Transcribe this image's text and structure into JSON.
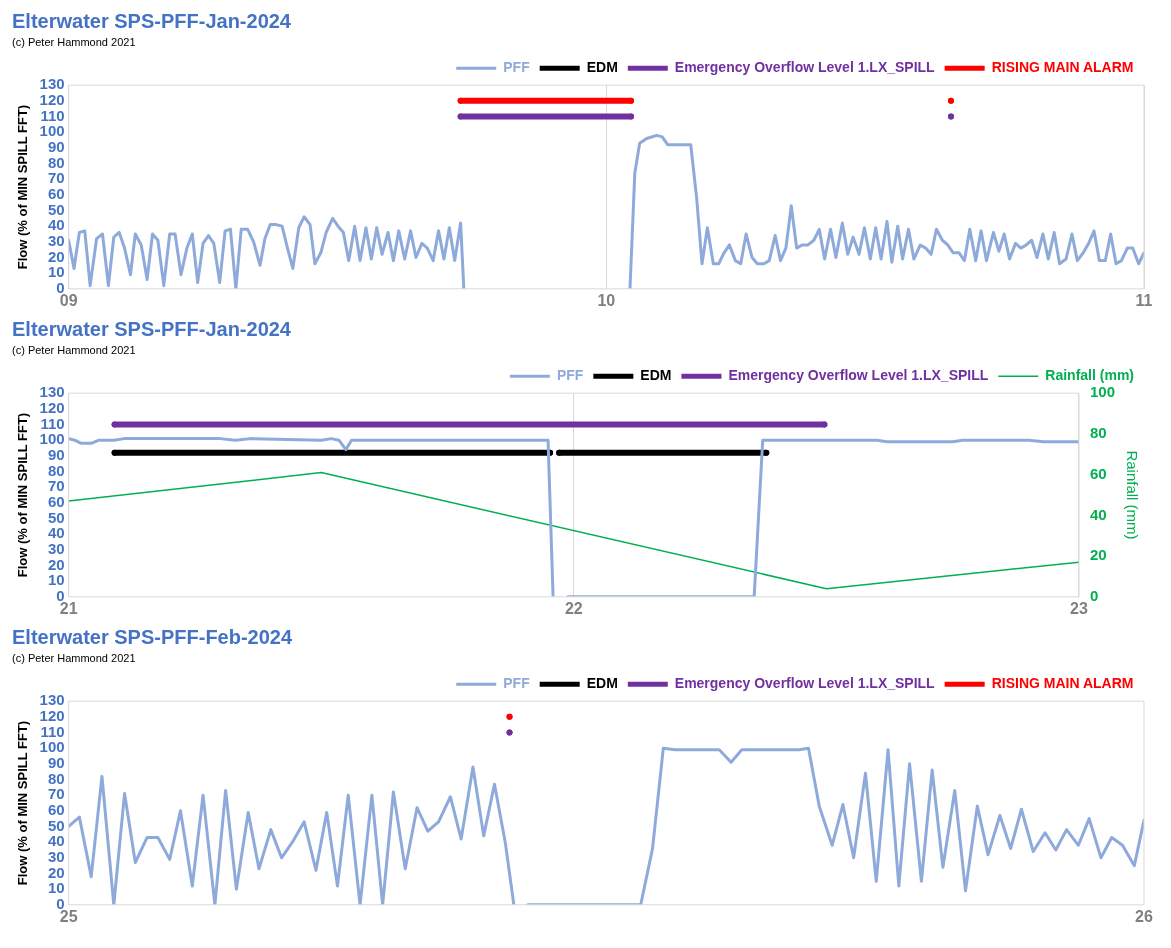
{
  "chart_data": [
    {
      "type": "line",
      "title": "Elterwater SPS-PFF-Jan-2024",
      "subtitle": "(c) Peter Hammond 2021",
      "ylabel": "Flow (% of MIN SPILL FFT)",
      "xlim": [
        9,
        11
      ],
      "xticks": [
        {
          "value": 9,
          "label": "09"
        },
        {
          "value": 10,
          "label": "10"
        },
        {
          "value": 11,
          "label": "11"
        }
      ],
      "ylim": [
        0,
        130
      ],
      "yticks": [
        0,
        10,
        20,
        30,
        40,
        50,
        60,
        70,
        80,
        90,
        100,
        110,
        120,
        130
      ],
      "grid": "x",
      "legend": "top",
      "series": [
        {
          "name": "PFF",
          "color": "#8eaadb",
          "marker": "none",
          "x": [
            9.0,
            9.01,
            9.02,
            9.03,
            9.04,
            9.052,
            9.063,
            9.074,
            9.084,
            9.094,
            9.104,
            9.115,
            9.124,
            9.135,
            9.146,
            9.156,
            9.166,
            9.177,
            9.188,
            9.198,
            9.209,
            9.22,
            9.23,
            9.24,
            9.25,
            9.26,
            9.27,
            9.281,
            9.291,
            9.301,
            9.311,
            9.321,
            9.333,
            9.344,
            9.356,
            9.365,
            9.375,
            9.386,
            9.397,
            9.407,
            9.417,
            9.428,
            9.438,
            9.449,
            9.458,
            9.469,
            9.479,
            9.491,
            9.501,
            9.511,
            9.521,
            9.532,
            9.542,
            9.553,
            9.563,
            9.573,
            9.583,
            9.594,
            9.604,
            9.614,
            9.625,
            9.636,
            9.646,
            9.657,
            9.667,
            9.678,
            9.688,
            9.698,
            9.708,
            9.718,
            9.729,
            9.735,
            9.9,
            10.044,
            10.053,
            10.062,
            10.075,
            10.094,
            10.104,
            10.114,
            10.157,
            10.168,
            10.178,
            10.188,
            10.199,
            10.209,
            10.219,
            10.229,
            10.24,
            10.25,
            10.26,
            10.271,
            10.281,
            10.293,
            10.303,
            10.314,
            10.324,
            10.334,
            10.344,
            10.354,
            10.364,
            10.375,
            10.386,
            10.396,
            10.406,
            10.417,
            10.427,
            10.439,
            10.449,
            10.459,
            10.47,
            10.48,
            10.491,
            10.501,
            10.511,
            10.522,
            10.531,
            10.542,
            10.551,
            10.562,
            10.572,
            10.584,
            10.594,
            10.604,
            10.614,
            10.625,
            10.635,
            10.645,
            10.656,
            10.666,
            10.676,
            10.687,
            10.697,
            10.707,
            10.72,
            10.73,
            10.74,
            10.75,
            10.761,
            10.771,
            10.781,
            10.791,
            10.801,
            10.812,
            10.822,
            10.833,
            10.843,
            10.855,
            10.866,
            10.876,
            10.887,
            10.897,
            10.907,
            10.917,
            10.928,
            10.938,
            10.948,
            10.958,
            10.969,
            10.979,
            10.99,
            11.0
          ],
          "values": [
            31,
            13,
            36,
            37,
            2,
            32,
            35,
            2,
            33,
            36,
            26,
            9,
            35,
            28,
            6,
            35,
            31,
            2,
            35,
            35,
            9,
            26,
            35,
            4,
            29,
            34,
            29,
            4,
            37,
            38,
            0,
            38,
            38,
            30,
            15,
            32,
            41,
            41,
            40,
            26,
            13,
            39,
            46,
            41,
            16,
            23,
            36,
            45,
            40,
            36,
            18,
            40,
            18,
            39,
            19,
            39,
            22,
            36,
            18,
            37,
            19,
            37,
            20,
            29,
            26,
            18,
            37,
            19,
            39,
            18,
            42,
            0,
            null,
            0,
            74,
            93,
            96,
            98,
            97,
            92,
            92,
            58,
            16,
            39,
            16,
            16,
            23,
            28,
            18,
            16,
            35,
            20,
            16,
            16,
            18,
            34,
            18,
            26,
            53,
            26,
            28,
            28,
            31,
            38,
            19,
            38,
            20,
            42,
            22,
            33,
            22,
            39,
            19,
            39,
            19,
            43,
            17,
            40,
            19,
            38,
            19,
            28,
            26,
            22,
            38,
            31,
            28,
            23,
            23,
            18,
            38,
            18,
            37,
            18,
            36,
            24,
            35,
            19,
            29,
            26,
            28,
            31,
            20,
            35,
            19,
            36,
            16,
            19,
            35,
            18,
            23,
            29,
            37,
            18,
            18,
            35,
            16,
            18,
            26,
            26,
            16,
            23
          ]
        },
        {
          "name": "EDM",
          "color": "#000000",
          "marker": "circle"
        },
        {
          "name": "Emergency Overflow Level 1.LX_SPILL",
          "color": "#7030a0",
          "marker": "circle",
          "x": [
            9.729,
            10.046,
            10.3,
            10.641
          ],
          "values": [
            110,
            110,
            null,
            110
          ]
        },
        {
          "name": "RISING MAIN ALARM",
          "color": "#ff0000",
          "marker": "circle",
          "x": [
            9.729,
            10.046,
            10.3,
            10.641
          ],
          "values": [
            120,
            120,
            null,
            120
          ]
        }
      ]
    },
    {
      "type": "line",
      "title": "Elterwater SPS-PFF-Jan-2024",
      "subtitle": "(c) Peter Hammond 2021",
      "ylabel": "Flow (% of MIN SPILL FFT)",
      "y2label": "Rainfall (mm)",
      "xlim": [
        21,
        23
      ],
      "xticks": [
        21,
        22,
        23
      ],
      "ylim": [
        0,
        130
      ],
      "yticks": [
        0,
        10,
        20,
        30,
        40,
        50,
        60,
        70,
        80,
        90,
        100,
        110,
        120,
        130
      ],
      "y2lim": [
        0,
        100
      ],
      "y2ticks": [
        0,
        20,
        40,
        60,
        80,
        100
      ],
      "grid": "x",
      "legend": "top",
      "series": [
        {
          "name": "PFF",
          "color": "#8eaadb",
          "marker": "none",
          "x": [
            21.0,
            21.012,
            21.025,
            21.045,
            21.06,
            21.09,
            21.11,
            21.3,
            21.33,
            21.36,
            21.5,
            21.52,
            21.535,
            21.549,
            21.56,
            21.949,
            21.959,
            21.975,
            21.988,
            22.357,
            22.374,
            22.39,
            22.6,
            22.62,
            22.75,
            22.77,
            22.9,
            22.93,
            23.0
          ],
          "values": [
            101,
            100,
            98,
            98,
            100,
            100,
            101,
            101,
            100,
            101,
            100,
            101,
            100,
            94,
            100,
            100,
            0,
            null,
            0,
            0,
            100,
            100,
            100,
            99,
            99,
            100,
            100,
            99,
            99
          ]
        },
        {
          "name": "EDM",
          "color": "#000000",
          "marker": "circle",
          "x": [
            21.091,
            21.953,
            21.962,
            21.971,
            22.381
          ],
          "values": [
            92,
            92,
            null,
            92,
            92
          ]
        },
        {
          "name": "Emergency Overflow Level 1.LX_SPILL",
          "color": "#7030a0",
          "marker": "circle",
          "x": [
            21.091,
            22.496
          ],
          "values": [
            110,
            110
          ]
        },
        {
          "name": "Rainfall (mm)",
          "color": "#00b050",
          "marker": "none",
          "axis": "y2",
          "x": [
            21,
            21.5,
            22.5,
            23
          ],
          "values": [
            47,
            61,
            4,
            17
          ]
        }
      ]
    },
    {
      "type": "line",
      "title": "Elterwater SPS-PFF-Feb-2024",
      "subtitle": "(c) Peter Hammond 2021",
      "ylabel": "Flow (% of MIN SPILL FFT)",
      "xlim": [
        25,
        26
      ],
      "xticks": [
        25,
        26
      ],
      "ylim": [
        0,
        130
      ],
      "yticks": [
        0,
        10,
        20,
        30,
        40,
        50,
        60,
        70,
        80,
        90,
        100,
        110,
        120,
        130
      ],
      "grid": false,
      "legend": "top",
      "series": [
        {
          "name": "PFF",
          "color": "#8eaadb",
          "marker": "none",
          "x": [
            25.0,
            25.01,
            25.021,
            25.031,
            25.042,
            25.052,
            25.062,
            25.073,
            25.083,
            25.094,
            25.104,
            25.115,
            25.125,
            25.136,
            25.146,
            25.156,
            25.167,
            25.177,
            25.188,
            25.198,
            25.209,
            25.219,
            25.23,
            25.24,
            25.25,
            25.26,
            25.271,
            25.282,
            25.292,
            25.302,
            25.313,
            25.324,
            25.334,
            25.344,
            25.355,
            25.365,
            25.376,
            25.386,
            25.396,
            25.406,
            25.414,
            25.42,
            25.427,
            25.532,
            25.543,
            25.553,
            25.564,
            25.605,
            25.616,
            25.626,
            25.679,
            25.688,
            25.698,
            25.71,
            25.72,
            25.73,
            25.741,
            25.751,
            25.762,
            25.772,
            25.782,
            25.793,
            25.803,
            25.813,
            25.824,
            25.834,
            25.845,
            25.855,
            25.866,
            25.876,
            25.886,
            25.897,
            25.908,
            25.918,
            25.928,
            25.939,
            25.949,
            25.96,
            25.97,
            25.98,
            25.991,
            26.0
          ],
          "values": [
            50,
            56,
            18,
            82,
            0,
            71,
            27,
            43,
            43,
            29,
            60,
            12,
            70,
            0,
            73,
            10,
            59,
            23,
            48,
            30,
            41,
            53,
            22,
            59,
            12,
            70,
            0,
            70,
            0,
            72,
            23,
            62,
            47,
            53,
            69,
            42,
            88,
            44,
            77,
            40,
            0,
            null,
            0,
            0,
            36,
            100,
            99,
            99,
            91,
            99,
            99,
            100,
            63,
            38,
            64,
            30,
            84,
            15,
            99,
            12,
            90,
            15,
            86,
            24,
            73,
            9,
            63,
            32,
            57,
            36,
            61,
            34,
            46,
            35,
            48,
            38,
            55,
            30,
            43,
            38,
            25,
            54
          ]
        },
        {
          "name": "EDM",
          "color": "#000000",
          "marker": "circle"
        },
        {
          "name": "Emergency Overflow Level 1.LX_SPILL",
          "color": "#7030a0",
          "marker": "circle",
          "x": [
            25.41
          ],
          "values": [
            110
          ]
        },
        {
          "name": "RISING MAIN ALARM",
          "color": "#ff0000",
          "marker": "circle",
          "x": [
            25.41
          ],
          "values": [
            120
          ]
        }
      ]
    }
  ]
}
